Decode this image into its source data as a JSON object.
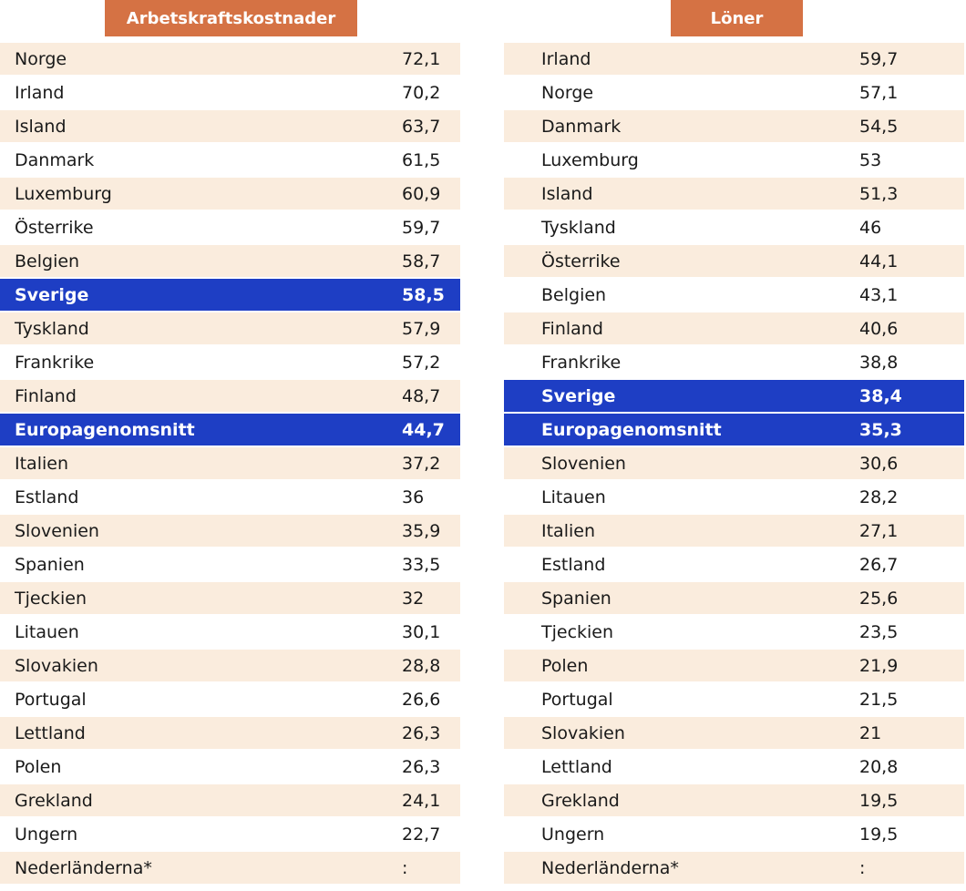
{
  "chart_data": {
    "type": "table",
    "highlight_color": "#1E3EC4",
    "header_color": "#D57244",
    "stripe_color": "#FAECDD",
    "tables": [
      {
        "title": "Arbetskraftskostnader",
        "highlighted": [
          "Sverige",
          "Europagenomsnitt"
        ],
        "rows": [
          [
            "Norge",
            "72,1"
          ],
          [
            "Irland",
            "70,2"
          ],
          [
            "Island",
            "63,7"
          ],
          [
            "Danmark",
            "61,5"
          ],
          [
            "Luxemburg",
            "60,9"
          ],
          [
            "Österrike",
            "59,7"
          ],
          [
            "Belgien",
            "58,7"
          ],
          [
            "Sverige",
            "58,5"
          ],
          [
            "Tyskland",
            "57,9"
          ],
          [
            "Frankrike",
            "57,2"
          ],
          [
            "Finland",
            "48,7"
          ],
          [
            "Europagenomsnitt",
            "44,7"
          ],
          [
            "Italien",
            "37,2"
          ],
          [
            "Estland",
            "36"
          ],
          [
            "Slovenien",
            "35,9"
          ],
          [
            "Spanien",
            "33,5"
          ],
          [
            "Tjeckien",
            "32"
          ],
          [
            "Litauen",
            "30,1"
          ],
          [
            "Slovakien",
            "28,8"
          ],
          [
            "Portugal",
            "26,6"
          ],
          [
            "Lettland",
            "26,3"
          ],
          [
            "Polen",
            "26,3"
          ],
          [
            "Grekland",
            "24,1"
          ],
          [
            "Ungern",
            "22,7"
          ],
          [
            "Nederländerna*",
            ":"
          ]
        ]
      },
      {
        "title": "Löner",
        "highlighted": [
          "Sverige",
          "Europagenomsnitt"
        ],
        "rows": [
          [
            "Irland",
            "59,7"
          ],
          [
            "Norge",
            "57,1"
          ],
          [
            "Danmark",
            "54,5"
          ],
          [
            "Luxemburg",
            "53"
          ],
          [
            "Island",
            "51,3"
          ],
          [
            "Tyskland",
            "46"
          ],
          [
            "Österrike",
            "44,1"
          ],
          [
            "Belgien",
            "43,1"
          ],
          [
            "Finland",
            "40,6"
          ],
          [
            "Frankrike",
            "38,8"
          ],
          [
            "Sverige",
            "38,4"
          ],
          [
            "Europagenomsnitt",
            "35,3"
          ],
          [
            "Slovenien",
            "30,6"
          ],
          [
            "Litauen",
            "28,2"
          ],
          [
            "Italien",
            "27,1"
          ],
          [
            "Estland",
            "26,7"
          ],
          [
            "Spanien",
            "25,6"
          ],
          [
            "Tjeckien",
            "23,5"
          ],
          [
            "Polen",
            "21,9"
          ],
          [
            "Portugal",
            "21,5"
          ],
          [
            "Slovakien",
            "21"
          ],
          [
            "Lettland",
            "20,8"
          ],
          [
            "Grekland",
            "19,5"
          ],
          [
            "Ungern",
            "19,5"
          ],
          [
            "Nederländerna*",
            ":"
          ]
        ]
      }
    ]
  }
}
